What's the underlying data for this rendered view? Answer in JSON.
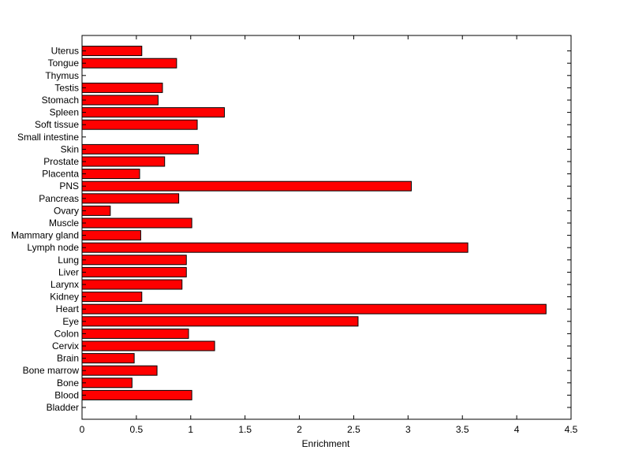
{
  "chart_data": {
    "type": "bar",
    "orientation": "horizontal",
    "title": "",
    "xlabel": "Enrichment",
    "ylabel": "",
    "xlim": [
      0,
      4.5
    ],
    "xticks": [
      0,
      0.5,
      1,
      1.5,
      2,
      2.5,
      3,
      3.5,
      4,
      4.5
    ],
    "xtick_labels": [
      "0",
      "0.5",
      "1",
      "1.5",
      "2",
      "2.5",
      "3",
      "3.5",
      "4",
      "4.5"
    ],
    "grid": false,
    "bar_color": "#ff0000",
    "bar_edge_color": "#000000",
    "categories": [
      "Bladder",
      "Blood",
      "Bone",
      "Bone marrow",
      "Brain",
      "Cervix",
      "Colon",
      "Eye",
      "Heart",
      "Kidney",
      "Larynx",
      "Liver",
      "Lung",
      "Lymph node",
      "Mammary gland",
      "Muscle",
      "Ovary",
      "Pancreas",
      "PNS",
      "Placenta",
      "Prostate",
      "Skin",
      "Small intestine",
      "Soft tissue",
      "Spleen",
      "Stomach",
      "Testis",
      "Thymus",
      "Tongue",
      "Uterus"
    ],
    "values": [
      0,
      1.01,
      0.46,
      0.69,
      0.48,
      1.22,
      0.98,
      2.54,
      4.27,
      0.55,
      0.92,
      0.96,
      0.96,
      3.55,
      0.54,
      1.01,
      0.26,
      0.89,
      3.03,
      0.53,
      0.76,
      1.07,
      0,
      1.06,
      1.31,
      0.7,
      0.74,
      0,
      0.87,
      0.55
    ]
  }
}
